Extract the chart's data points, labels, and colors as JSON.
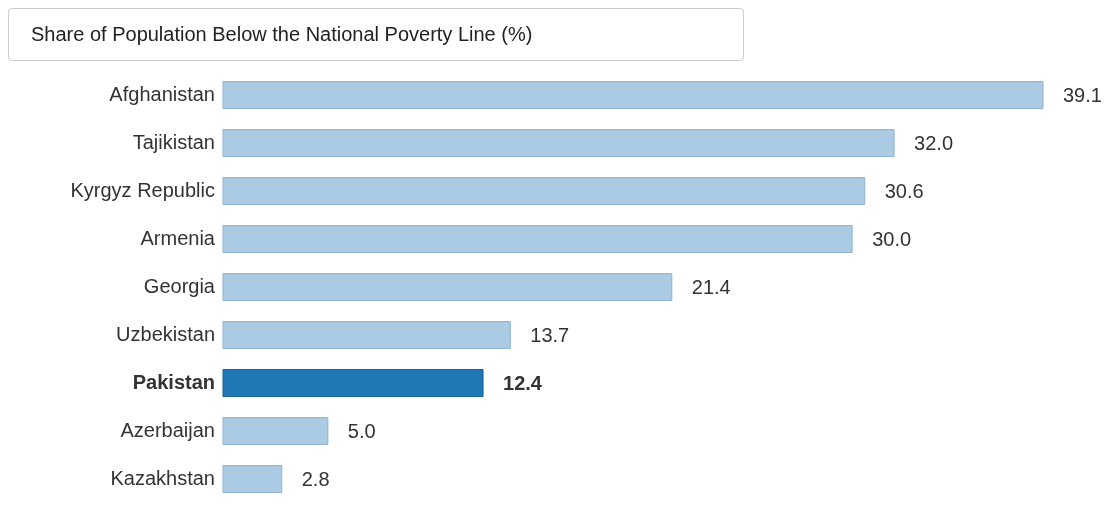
{
  "chart_data": {
    "type": "bar",
    "orientation": "horizontal",
    "title": "Share of Population Below the National Poverty Line (%)",
    "categories": [
      "Afghanistan",
      "Tajikistan",
      "Kyrgyz Republic",
      "Armenia",
      "Georgia",
      "Uzbekistan",
      "Pakistan",
      "Azerbaijan",
      "Kazakhstan"
    ],
    "values": [
      39.1,
      32.0,
      30.6,
      30.0,
      21.4,
      13.7,
      12.4,
      5.0,
      2.8
    ],
    "value_labels": [
      "39.1",
      "32.0",
      "30.6",
      "30.0",
      "21.4",
      "13.7",
      "12.4",
      "5.0",
      "2.8"
    ],
    "colors": [
      "#abcae3",
      "#abcae3",
      "#abcae3",
      "#abcae3",
      "#abcae3",
      "#abcae3",
      "#1f77b4",
      "#abcae3",
      "#abcae3"
    ],
    "grid": false,
    "legend": false
  }
}
